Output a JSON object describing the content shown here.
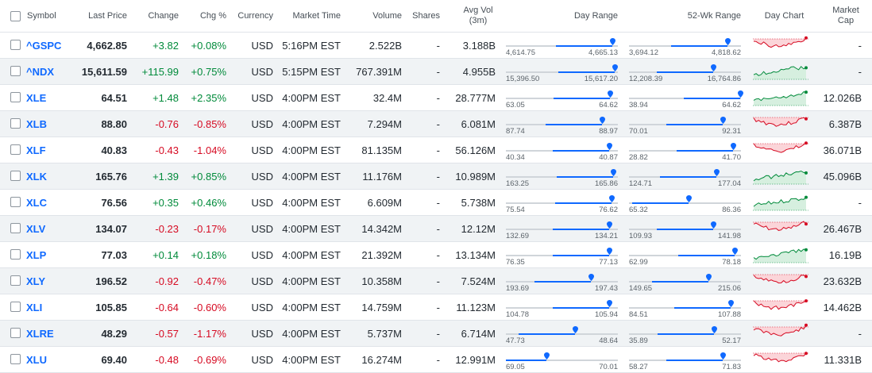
{
  "columns": {
    "symbol": "Symbol",
    "last_price": "Last Price",
    "change": "Change",
    "chg_pct": "Chg %",
    "currency": "Currency",
    "market_time": "Market Time",
    "volume": "Volume",
    "shares": "Shares",
    "avg_vol_1": "Avg Vol",
    "avg_vol_2": "(3m)",
    "day_range": "Day Range",
    "wk52_range": "52-Wk Range",
    "day_chart": "Day Chart",
    "market_cap_1": "Market",
    "market_cap_2": "Cap"
  },
  "colors": {
    "positive": "#008a3a",
    "negative": "#d60a22",
    "link": "#0f69ff",
    "range_fill": "#0f69ff"
  },
  "rows": [
    {
      "symbol": "^GSPC",
      "price": "4,662.85",
      "change": "+3.82",
      "pct": "+0.08%",
      "currency": "USD",
      "time": "5:16PM EST",
      "volume": "2.522B",
      "shares": "-",
      "avg_vol": "3.188B",
      "day_low": "4,614.75",
      "day_high": "4,665.13",
      "day_value": 0.95,
      "wk_low": "3,694.12",
      "wk_high": "4,818.62",
      "wk_value": 0.88,
      "trend": "down",
      "market_cap": "-"
    },
    {
      "symbol": "^NDX",
      "price": "15,611.59",
      "change": "+115.99",
      "pct": "+0.75%",
      "currency": "USD",
      "time": "5:15PM EST",
      "volume": "767.391M",
      "shares": "-",
      "avg_vol": "4.955B",
      "day_low": "15,396.50",
      "day_high": "15,617.20",
      "day_value": 0.97,
      "wk_low": "12,208.39",
      "wk_high": "16,764.86",
      "wk_value": 0.75,
      "trend": "up",
      "market_cap": "-"
    },
    {
      "symbol": "XLE",
      "price": "64.51",
      "change": "+1.48",
      "pct": "+2.35%",
      "currency": "USD",
      "time": "4:00PM EST",
      "volume": "32.4M",
      "shares": "-",
      "avg_vol": "28.777M",
      "day_low": "63.05",
      "day_high": "64.62",
      "day_value": 0.93,
      "wk_low": "38.94",
      "wk_high": "64.62",
      "wk_value": 0.99,
      "trend": "up",
      "market_cap": "12.026B"
    },
    {
      "symbol": "XLB",
      "price": "88.80",
      "change": "-0.76",
      "pct": "-0.85%",
      "currency": "USD",
      "time": "4:00PM EST",
      "volume": "7.294M",
      "shares": "-",
      "avg_vol": "6.081M",
      "day_low": "87.74",
      "day_high": "88.97",
      "day_value": 0.86,
      "wk_low": "70.01",
      "wk_high": "92.31",
      "wk_value": 0.84,
      "trend": "down",
      "market_cap": "6.387B"
    },
    {
      "symbol": "XLF",
      "price": "40.83",
      "change": "-0.43",
      "pct": "-1.04%",
      "currency": "USD",
      "time": "4:00PM EST",
      "volume": "81.135M",
      "shares": "-",
      "avg_vol": "56.126M",
      "day_low": "40.34",
      "day_high": "40.87",
      "day_value": 0.92,
      "wk_low": "28.82",
      "wk_high": "41.70",
      "wk_value": 0.93,
      "trend": "down",
      "market_cap": "36.071B"
    },
    {
      "symbol": "XLK",
      "price": "165.76",
      "change": "+1.39",
      "pct": "+0.85%",
      "currency": "USD",
      "time": "4:00PM EST",
      "volume": "11.176M",
      "shares": "-",
      "avg_vol": "10.989M",
      "day_low": "163.25",
      "day_high": "165.86",
      "day_value": 0.96,
      "wk_low": "124.71",
      "wk_high": "177.04",
      "wk_value": 0.78,
      "trend": "up",
      "market_cap": "45.096B"
    },
    {
      "symbol": "XLC",
      "price": "76.56",
      "change": "+0.35",
      "pct": "+0.46%",
      "currency": "USD",
      "time": "4:00PM EST",
      "volume": "6.609M",
      "shares": "-",
      "avg_vol": "5.738M",
      "day_low": "75.54",
      "day_high": "76.62",
      "day_value": 0.94,
      "wk_low": "65.32",
      "wk_high": "86.36",
      "wk_value": 0.53,
      "trend": "up",
      "market_cap": "-"
    },
    {
      "symbol": "XLV",
      "price": "134.07",
      "change": "-0.23",
      "pct": "-0.17%",
      "currency": "USD",
      "time": "4:00PM EST",
      "volume": "14.342M",
      "shares": "-",
      "avg_vol": "12.12M",
      "day_low": "132.69",
      "day_high": "134.21",
      "day_value": 0.92,
      "wk_low": "109.93",
      "wk_high": "141.98",
      "wk_value": 0.75,
      "trend": "down",
      "market_cap": "26.467B"
    },
    {
      "symbol": "XLP",
      "price": "77.03",
      "change": "+0.14",
      "pct": "+0.18%",
      "currency": "USD",
      "time": "4:00PM EST",
      "volume": "21.392M",
      "shares": "-",
      "avg_vol": "13.134M",
      "day_low": "76.35",
      "day_high": "77.13",
      "day_value": 0.92,
      "wk_low": "62.99",
      "wk_high": "78.18",
      "wk_value": 0.94,
      "trend": "up",
      "market_cap": "16.19B"
    },
    {
      "symbol": "XLY",
      "price": "196.52",
      "change": "-0.92",
      "pct": "-0.47%",
      "currency": "USD",
      "time": "4:00PM EST",
      "volume": "10.358M",
      "shares": "-",
      "avg_vol": "7.524M",
      "day_low": "193.69",
      "day_high": "197.43",
      "day_value": 0.76,
      "wk_low": "149.65",
      "wk_high": "215.06",
      "wk_value": 0.71,
      "trend": "down",
      "market_cap": "23.632B"
    },
    {
      "symbol": "XLI",
      "price": "105.85",
      "change": "-0.64",
      "pct": "-0.60%",
      "currency": "USD",
      "time": "4:00PM EST",
      "volume": "14.759M",
      "shares": "-",
      "avg_vol": "11.123M",
      "day_low": "104.78",
      "day_high": "105.94",
      "day_value": 0.92,
      "wk_low": "84.51",
      "wk_high": "107.88",
      "wk_value": 0.91,
      "trend": "down",
      "market_cap": "14.462B"
    },
    {
      "symbol": "XLRE",
      "price": "48.29",
      "change": "-0.57",
      "pct": "-1.17%",
      "currency": "USD",
      "time": "4:00PM EST",
      "volume": "5.737M",
      "shares": "-",
      "avg_vol": "6.714M",
      "day_low": "47.73",
      "day_high": "48.64",
      "day_value": 0.62,
      "wk_low": "35.89",
      "wk_high": "52.17",
      "wk_value": 0.76,
      "trend": "down",
      "market_cap": "-"
    },
    {
      "symbol": "XLU",
      "price": "69.40",
      "change": "-0.48",
      "pct": "-0.69%",
      "currency": "USD",
      "time": "4:00PM EST",
      "volume": "16.274M",
      "shares": "-",
      "avg_vol": "12.991M",
      "day_low": "69.05",
      "day_high": "70.01",
      "day_value": 0.36,
      "wk_low": "58.27",
      "wk_high": "71.83",
      "wk_value": 0.84,
      "trend": "down",
      "market_cap": "11.331B"
    }
  ]
}
